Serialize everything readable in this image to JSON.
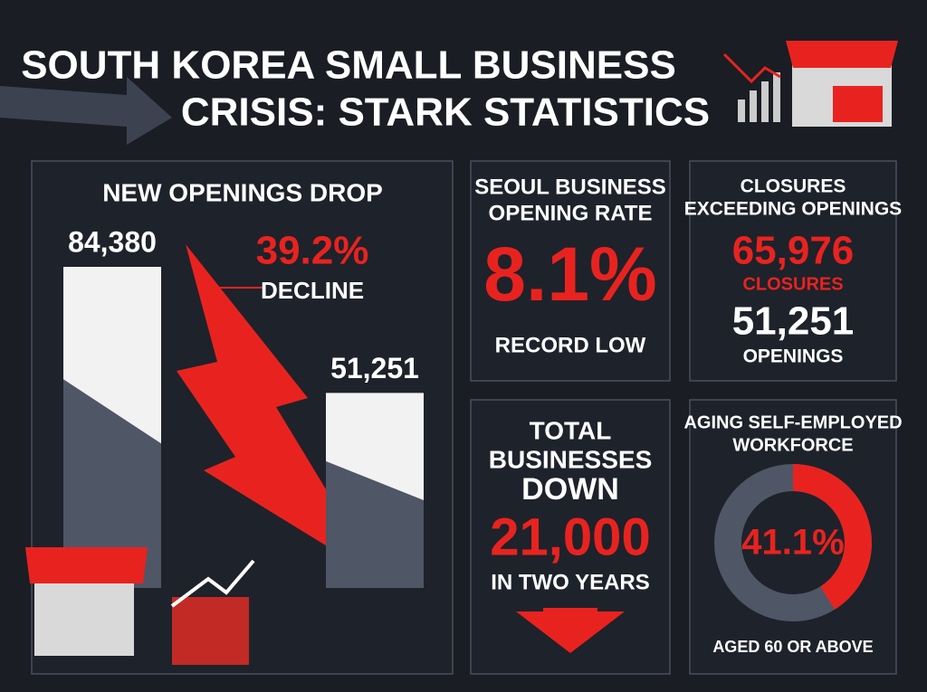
{
  "title": {
    "line1": "SOUTH KOREA SMALL BUSINESS",
    "line2": "CRISIS: STARK STATISTICS"
  },
  "openings_panel": {
    "heading": "NEW OPENINGS DROP",
    "bars": [
      {
        "value": 84380,
        "label": "84,380"
      },
      {
        "value": 51251,
        "label": "51,251"
      }
    ],
    "change": "39.2%",
    "change_label": "DECLINE"
  },
  "seoul_panel": {
    "heading_line1": "SEOUL BUSINESS",
    "heading_line2": "OPENING RATE",
    "value": "8.1%",
    "caption": "RECORD LOW"
  },
  "closures_panel": {
    "heading_line1": "CLOSURES",
    "heading_line2": "EXCEEDING OPENINGS",
    "closures": "65,976",
    "closures_label": "CLOSURES",
    "openings": "51,251",
    "openings_label": "OPENINGS"
  },
  "total_panel": {
    "heading_line1": "TOTAL",
    "heading_line2": "BUSINESSES",
    "heading_line3": "DOWN",
    "value": "21,000",
    "caption": "IN TWO YEARS"
  },
  "aging_panel": {
    "heading_line1": "AGING SELF-EMPLOYED",
    "heading_line2": "WORKFORCE",
    "share": {
      "value": 41.1,
      "label": "41.1%"
    },
    "caption": "AGED 60 OR ABOVE"
  }
}
